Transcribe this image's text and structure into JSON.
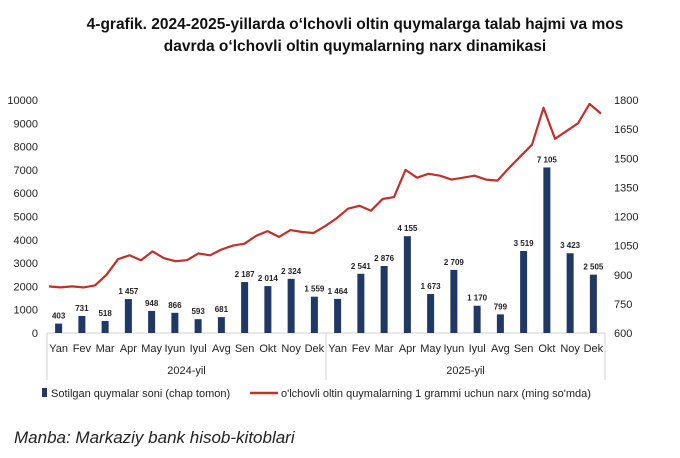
{
  "title_lines": [
    "4-grafik. 2024-2025-yillarda o‘lchovli oltin quymalarga talab hajmi va mos",
    "davrda o‘lchovli oltin quymalarning narx dinamikasi"
  ],
  "source": "Manba: Markaziy bank hisob-kitoblari",
  "chart_data": {
    "type": "bar+line",
    "categories": [
      "Yan",
      "Fev",
      "Mar",
      "Apr",
      "May",
      "Iyun",
      "Iyul",
      "Avg",
      "Sen",
      "Okt",
      "Noy",
      "Dek",
      "Yan",
      "Fev",
      "Mar",
      "Apr",
      "May",
      "Iyun",
      "Iyul",
      "Avg",
      "Sen",
      "Okt",
      "Noy",
      "Dek"
    ],
    "groups": [
      "2024-yil",
      "2025-yil"
    ],
    "bars": {
      "name": "Sotilgan quymalar soni (chap tomon)",
      "color": "#1f3864",
      "axis": "left",
      "values": [
        403,
        731,
        518,
        1457,
        948,
        866,
        593,
        681,
        2187,
        2014,
        2324,
        1559,
        1464,
        2541,
        2876,
        4155,
        1673,
        2709,
        1170,
        799,
        3519,
        7105,
        3423,
        2505
      ],
      "labels": [
        "403",
        "731",
        "518",
        "1 457",
        "948",
        "866",
        "593",
        "681",
        "2 187",
        "2 014",
        "2 324",
        "1 559",
        "1 464",
        "2 541",
        "2 876",
        "4 155",
        "1 673",
        "2 709",
        "1 170",
        "799",
        "3 519",
        "7 105",
        "3 423",
        "2 505"
      ]
    },
    "line": {
      "name": "o'lchovli oltin quymalarning 1 grammi uchun narx (ming so'mda)",
      "color": "#c0312b",
      "axis": "right",
      "values": [
        840,
        835,
        840,
        835,
        845,
        900,
        980,
        1000,
        975,
        1020,
        985,
        970,
        975,
        1010,
        1000,
        1030,
        1050,
        1060,
        1100,
        1125,
        1095,
        1130,
        1120,
        1115,
        1150,
        1190,
        1240,
        1255,
        1230,
        1290,
        1300,
        1440,
        1400,
        1420,
        1410,
        1390,
        1400,
        1410,
        1390,
        1385,
        1450,
        1510,
        1570,
        1760,
        1600,
        1640,
        1680,
        1780,
        1730
      ]
    },
    "left_axis": {
      "min": 0,
      "max": 10000,
      "ticks": [
        "0",
        "1000",
        "2000",
        "3000",
        "4000",
        "5000",
        "6000",
        "7000",
        "8000",
        "9000",
        "10000"
      ]
    },
    "right_axis": {
      "min": 600,
      "max": 1800,
      "ticks": [
        "600",
        "750",
        "900",
        "1050",
        "1200",
        "1350",
        "1500",
        "1650",
        "1800"
      ]
    },
    "legend_position": "bottom"
  }
}
